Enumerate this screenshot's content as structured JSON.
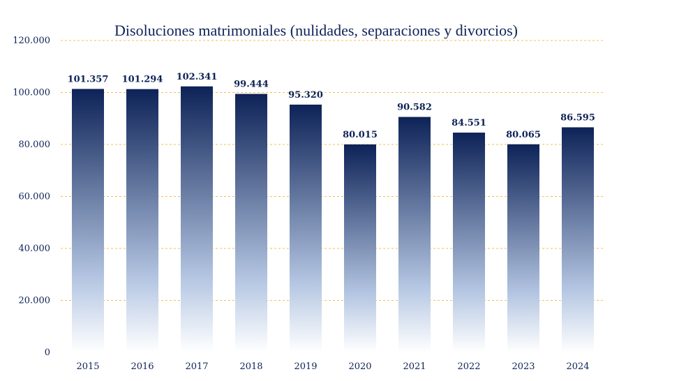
{
  "chart_data": {
    "type": "bar",
    "title": "Disoluciones matrimoniales (nulidades, separaciones y divorcios)",
    "xlabel": "",
    "ylabel": "",
    "categories": [
      "2015",
      "2016",
      "2017",
      "2018",
      "2019",
      "2020",
      "2021",
      "2022",
      "2023",
      "2024"
    ],
    "values": [
      101357,
      101294,
      102341,
      99444,
      95320,
      80015,
      90582,
      84551,
      80065,
      86595
    ],
    "value_labels": [
      "101.357",
      "101.294",
      "102.341",
      "99.444",
      "95.320",
      "80.015",
      "90.582",
      "84.551",
      "80.065",
      "86.595"
    ],
    "ylim": [
      0,
      120000
    ],
    "yticks": [
      0,
      20000,
      40000,
      60000,
      80000,
      100000,
      120000
    ],
    "ytick_labels": [
      "0",
      "20.000",
      "40.000",
      "60.000",
      "80.000",
      "100.000",
      "120.000"
    ],
    "grid": true,
    "legend": "none",
    "colors": {
      "bar_top": "#0d2257",
      "bar_mid": "#b4c6e2",
      "bar_bottom": "#ffffff",
      "grid": "#f2c14e",
      "text": "#0d2257"
    }
  }
}
